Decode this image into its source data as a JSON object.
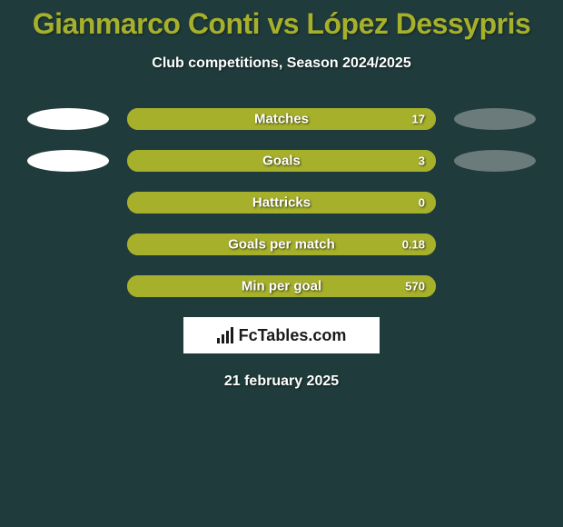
{
  "background_color": "#1f3b3b",
  "title": {
    "text": "Gianmarco Conti vs López Dessypris",
    "color": "#a6b02b",
    "fontsize": 32
  },
  "subtitle": {
    "text": "Club competitions, Season 2024/2025",
    "color": "#ffffff",
    "fontsize": 16
  },
  "ellipses": {
    "left_color": "#ffffff",
    "right_color": "#6b7a7a"
  },
  "bars": {
    "track_color": "#a6b02b",
    "fill_color": "#a6b02b",
    "label_color": "#ffffff",
    "value_color": "#ffffff",
    "label_fontsize": 15,
    "value_fontsize": 13
  },
  "stats": [
    {
      "label": "Matches",
      "right_value": "17",
      "fill_pct": 100,
      "show_ellipses": true
    },
    {
      "label": "Goals",
      "right_value": "3",
      "fill_pct": 100,
      "show_ellipses": true
    },
    {
      "label": "Hattricks",
      "right_value": "0",
      "fill_pct": 100,
      "show_ellipses": false
    },
    {
      "label": "Goals per match",
      "right_value": "0.18",
      "fill_pct": 100,
      "show_ellipses": false
    },
    {
      "label": "Min per goal",
      "right_value": "570",
      "fill_pct": 100,
      "show_ellipses": false
    }
  ],
  "attribution": {
    "text": "FcTables.com",
    "bg": "#ffffff",
    "color": "#1a1a1a",
    "fontsize": 18
  },
  "footer": {
    "text": "21 february 2025",
    "color": "#ffffff",
    "fontsize": 16
  }
}
